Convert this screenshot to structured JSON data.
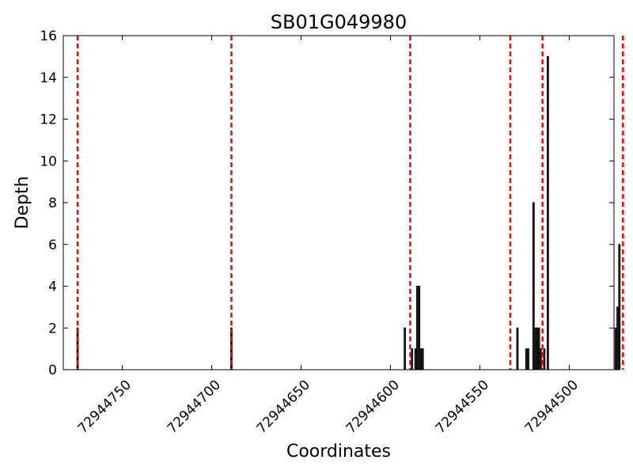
{
  "chart_data": {
    "type": "bar",
    "title": "SB01G049980",
    "xlabel": "Coordinates",
    "ylabel": "Depth",
    "xlim": [
      72944783,
      72944475
    ],
    "x_inverted": true,
    "ylim": [
      0,
      16
    ],
    "yticks": [
      0,
      2,
      4,
      6,
      8,
      10,
      12,
      14,
      16
    ],
    "xticks": [
      72944750,
      72944700,
      72944650,
      72944600,
      72944550,
      72944500
    ],
    "grid": false,
    "bar_color": "#000000",
    "bars": [
      {
        "x": 72944775,
        "y": 2
      },
      {
        "x": 72944689,
        "y": 2
      },
      {
        "x": 72944592,
        "y": 2
      },
      {
        "x": 72944588,
        "y": 1
      },
      {
        "x": 72944586,
        "y": 1
      },
      {
        "x": 72944585,
        "y": 4
      },
      {
        "x": 72944584,
        "y": 4
      },
      {
        "x": 72944583,
        "y": 1
      },
      {
        "x": 72944582,
        "y": 1
      },
      {
        "x": 72944529,
        "y": 2
      },
      {
        "x": 72944524,
        "y": 1
      },
      {
        "x": 72944523,
        "y": 1
      },
      {
        "x": 72944520,
        "y": 8
      },
      {
        "x": 72944519,
        "y": 2
      },
      {
        "x": 72944518,
        "y": 2
      },
      {
        "x": 72944517,
        "y": 2
      },
      {
        "x": 72944516,
        "y": 1
      },
      {
        "x": 72944514,
        "y": 1
      },
      {
        "x": 72944512,
        "y": 15
      },
      {
        "x": 72944474,
        "y": 2
      },
      {
        "x": 72944473,
        "y": 3
      },
      {
        "x": 72944472,
        "y": 6
      }
    ],
    "markers": {
      "style": "dashed",
      "color": "#ff0000",
      "x": [
        72944775,
        72944689,
        72944589,
        72944533,
        72944515,
        72944470
      ]
    }
  }
}
